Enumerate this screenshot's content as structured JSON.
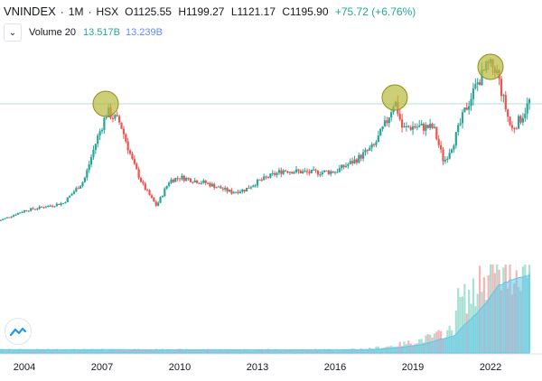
{
  "header": {
    "symbol": "VNINDEX",
    "interval": "1M",
    "exchange": "HSX",
    "open": "O1125.55",
    "high": "H1199.27",
    "low": "L1121.17",
    "close": "C1195.90",
    "change": "+75.72 (+6.76%)"
  },
  "volume": {
    "label": "Volume 20",
    "value1": "13.517B",
    "value2": "13.239B"
  },
  "colors": {
    "up": "#26a69a",
    "down": "#ef5350",
    "volume_up": "#a7e0d4",
    "volume_down": "#f5b5b5",
    "volume_ma": "#5ec6ea",
    "highlight": "#b8ba3c",
    "hline": "#b2dfdb"
  },
  "chart_data": {
    "type": "candlestick",
    "x_ticks": [
      "2004",
      "2007",
      "2010",
      "2013",
      "2016",
      "2019",
      "2022"
    ],
    "peaks_highlighted": [
      "2007",
      "2018",
      "2022"
    ],
    "close_series": [
      {
        "t": 2003.0,
        "v": 150
      },
      {
        "t": 2004.0,
        "v": 240
      },
      {
        "t": 2005.5,
        "v": 305
      },
      {
        "t": 2006.3,
        "v": 500
      },
      {
        "t": 2006.8,
        "v": 860
      },
      {
        "t": 2007.2,
        "v": 1100
      },
      {
        "t": 2007.7,
        "v": 1000
      },
      {
        "t": 2008.2,
        "v": 650
      },
      {
        "t": 2008.6,
        "v": 450
      },
      {
        "t": 2009.1,
        "v": 280
      },
      {
        "t": 2009.6,
        "v": 500
      },
      {
        "t": 2010.0,
        "v": 530
      },
      {
        "t": 2011.0,
        "v": 480
      },
      {
        "t": 2012.0,
        "v": 400
      },
      {
        "t": 2012.5,
        "v": 420
      },
      {
        "t": 2013.0,
        "v": 490
      },
      {
        "t": 2014.0,
        "v": 590
      },
      {
        "t": 2015.0,
        "v": 570
      },
      {
        "t": 2016.0,
        "v": 580
      },
      {
        "t": 2016.8,
        "v": 680
      },
      {
        "t": 2017.5,
        "v": 800
      },
      {
        "t": 2018.0,
        "v": 1020
      },
      {
        "t": 2018.3,
        "v": 1200
      },
      {
        "t": 2018.6,
        "v": 950
      },
      {
        "t": 2019.0,
        "v": 970
      },
      {
        "t": 2019.8,
        "v": 960
      },
      {
        "t": 2020.2,
        "v": 660
      },
      {
        "t": 2020.6,
        "v": 850
      },
      {
        "t": 2021.0,
        "v": 1100
      },
      {
        "t": 2021.5,
        "v": 1350
      },
      {
        "t": 2021.9,
        "v": 1500
      },
      {
        "t": 2022.2,
        "v": 1480
      },
      {
        "t": 2022.5,
        "v": 1200
      },
      {
        "t": 2022.8,
        "v": 940
      },
      {
        "t": 2023.2,
        "v": 1050
      },
      {
        "t": 2023.5,
        "v": 1190
      }
    ],
    "highlight_level": 1200
  }
}
